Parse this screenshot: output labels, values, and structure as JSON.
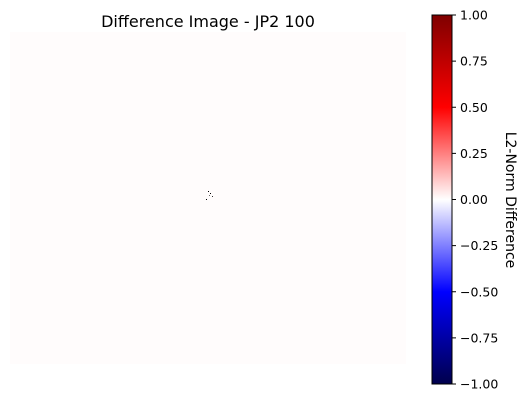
{
  "chart_data": {
    "type": "heatmap",
    "title": "Difference Image - JP2 100",
    "xlabel": "",
    "ylabel": "",
    "axes_visible": false,
    "colormap": "seismic",
    "colorbar": {
      "label": "L2-Norm Difference",
      "range": [
        -1.0,
        1.0
      ],
      "ticks": [
        1.0,
        0.75,
        0.5,
        0.25,
        0.0,
        -0.25,
        -0.5,
        -0.75,
        -1.0
      ],
      "tick_labels": [
        "1.00",
        "0.75",
        "0.50",
        "0.25",
        "0.00",
        "−0.25",
        "−0.50",
        "−0.75",
        "−1.00"
      ]
    },
    "background_value": 0.0,
    "background_color": "#fffcfc",
    "description_values": "Almost entirely zero difference; a few isolated nonzero pixels near the center"
  }
}
